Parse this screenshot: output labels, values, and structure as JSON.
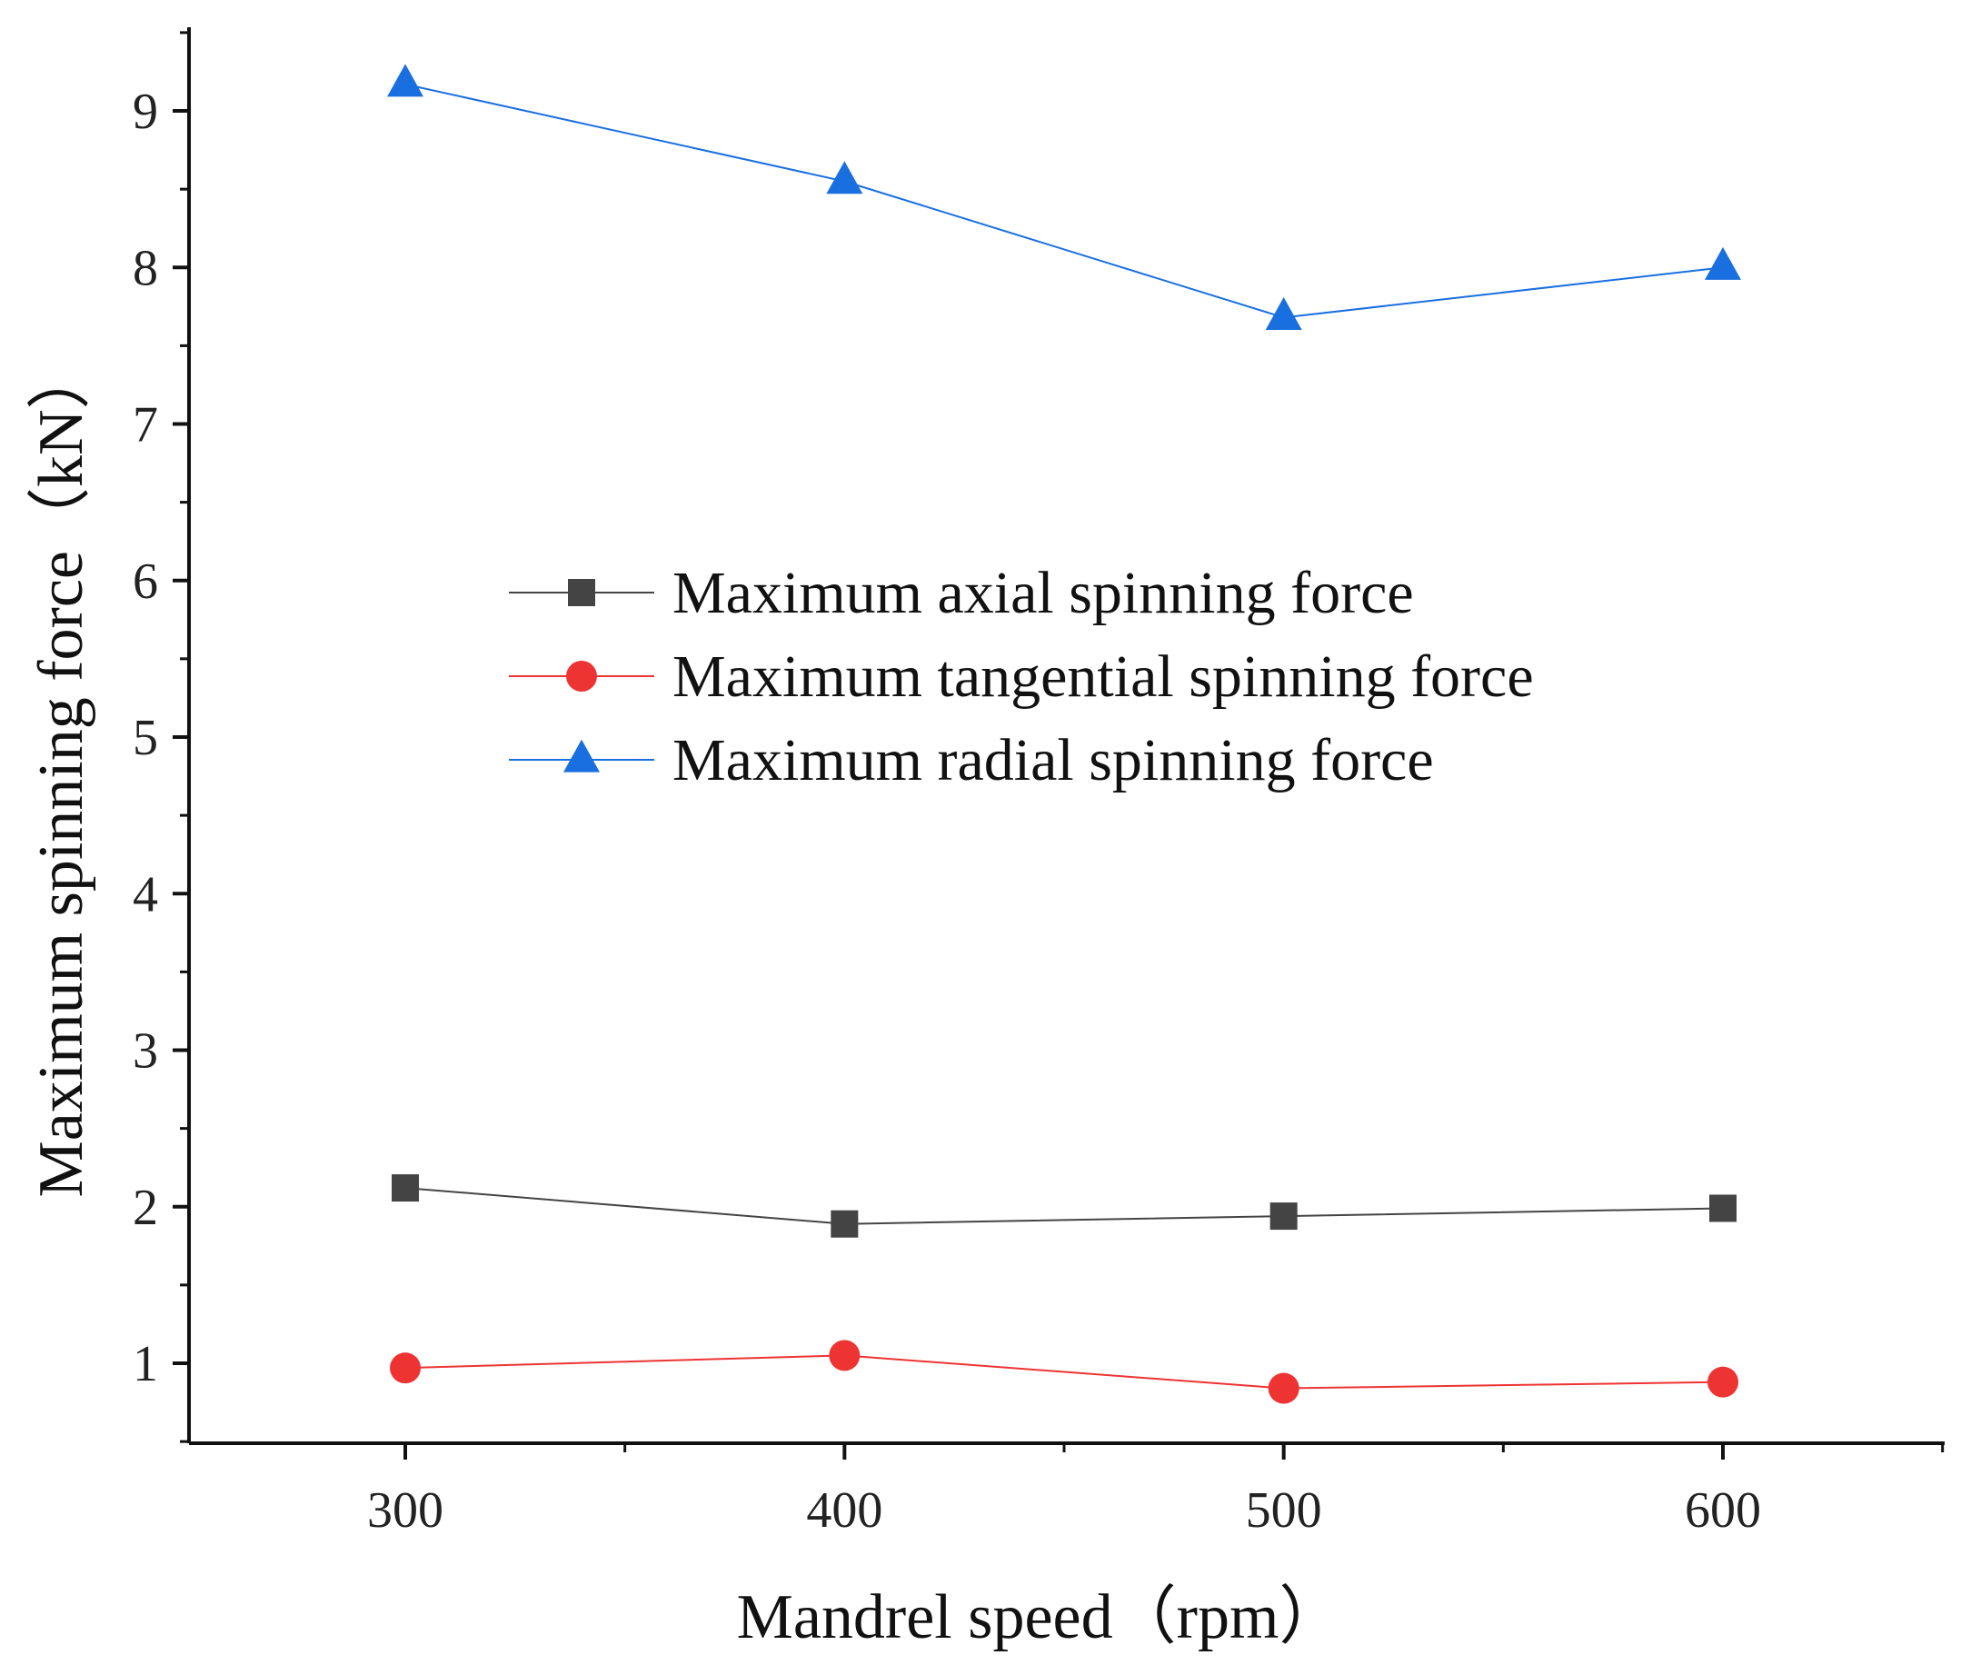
{
  "chart_data": {
    "type": "line",
    "x": [
      300,
      400,
      500,
      600
    ],
    "xlabel": "Mandrel speed（rpm）",
    "ylabel": "Maximum spinning force（kN）",
    "xlim": [
      250,
      650
    ],
    "ylim": [
      0.5,
      9.5
    ],
    "xticks": [
      "300",
      "400",
      "500",
      "600"
    ],
    "yticks": [
      "1",
      "2",
      "3",
      "4",
      "5",
      "6",
      "7",
      "8",
      "9"
    ],
    "grid": false,
    "legend_position": "center",
    "series": [
      {
        "name": "Maximum axial spinning force",
        "values": [
          2.12,
          1.89,
          1.94,
          1.99
        ],
        "color": "#444444",
        "marker": "square"
      },
      {
        "name": "Maximum tangential spinning force",
        "values": [
          0.97,
          1.05,
          0.84,
          0.88
        ],
        "color": "#ee3333",
        "marker": "circle"
      },
      {
        "name": "Maximum radial spinning force",
        "values": [
          9.17,
          8.55,
          7.68,
          8.0
        ],
        "color": "#1a6fe0",
        "marker": "triangle"
      }
    ]
  }
}
